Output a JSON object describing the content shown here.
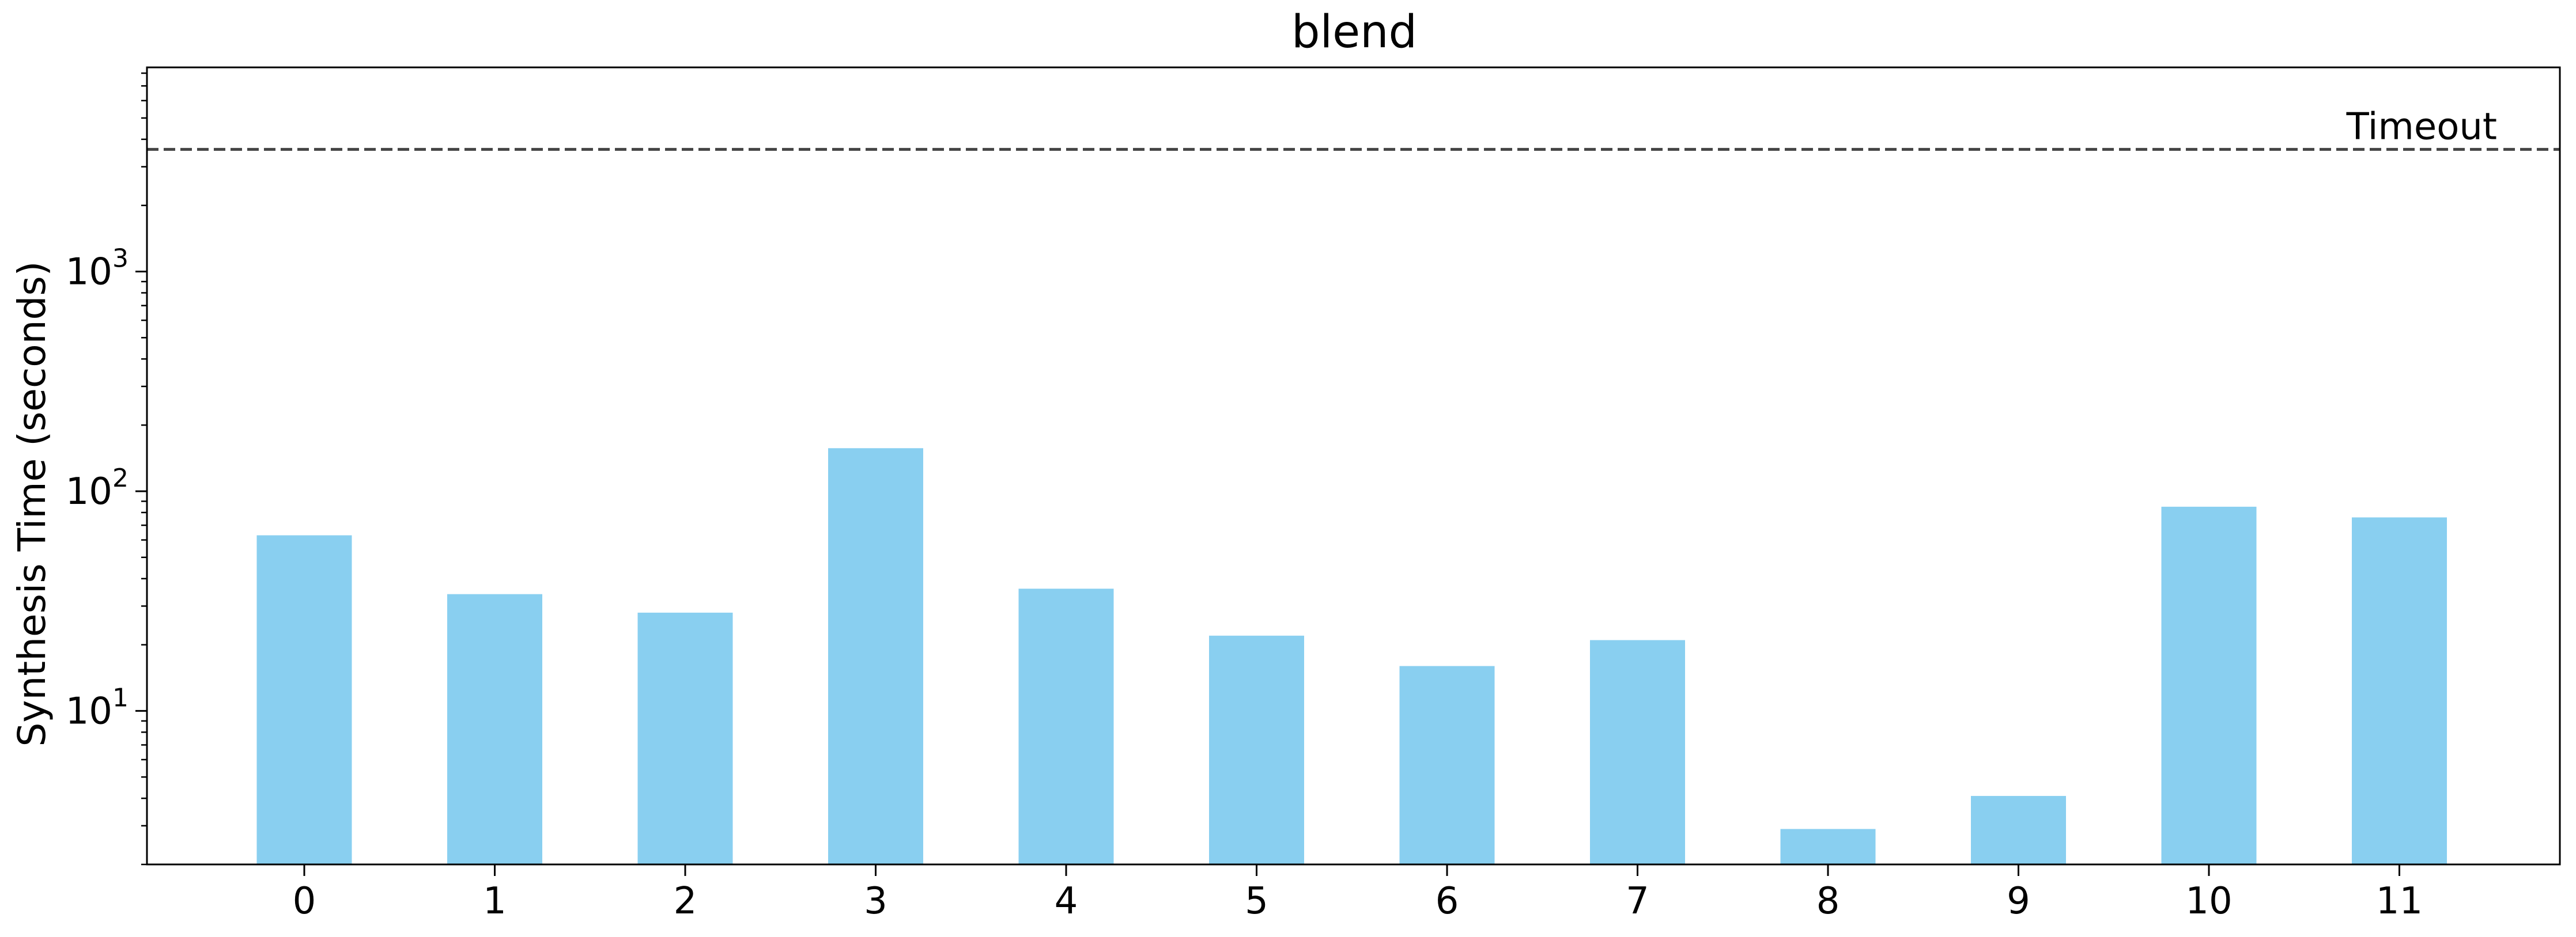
{
  "chart_data": {
    "type": "bar",
    "title": "blend",
    "xlabel": "",
    "ylabel": "Synthesis Time (seconds)",
    "y_scale": "log",
    "ylim": [
      2.0,
      8500
    ],
    "categories": [
      "0",
      "1",
      "2",
      "3",
      "4",
      "5",
      "6",
      "7",
      "8",
      "9",
      "10",
      "11"
    ],
    "values": [
      63,
      34,
      28,
      157,
      36,
      22,
      16,
      21,
      2.9,
      4.1,
      85,
      76
    ],
    "y_ticks": [
      {
        "value": 10,
        "base": "10",
        "exp": "1"
      },
      {
        "value": 100,
        "base": "10",
        "exp": "2"
      },
      {
        "value": 1000,
        "base": "10",
        "exp": "3"
      }
    ],
    "reference_line": {
      "label": "Timeout",
      "value": 3600,
      "style": "dashed",
      "color": "#444444"
    },
    "bar_color": "#89CFF0",
    "grid": false,
    "legend": "none"
  }
}
